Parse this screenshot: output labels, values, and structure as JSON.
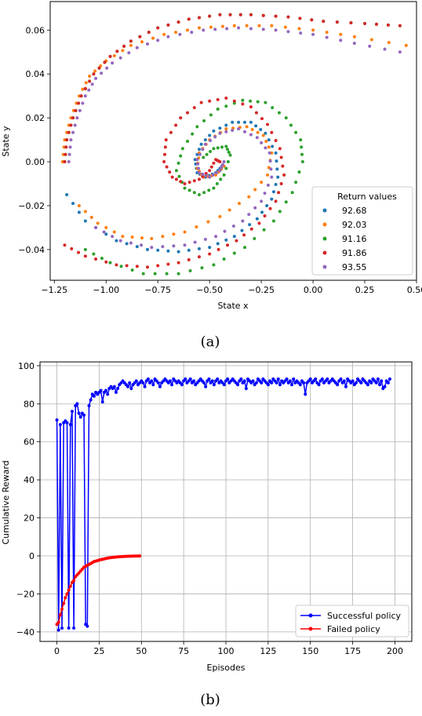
{
  "captions": [
    "(a)",
    "(b)"
  ],
  "chart_data": [
    {
      "type": "scatter",
      "xlabel": "State x",
      "ylabel": "State y",
      "xlim": [
        -1.27,
        0.5
      ],
      "ylim": [
        -0.054,
        0.073
      ],
      "xticks": [
        -1.25,
        -1.0,
        -0.75,
        -0.5,
        -0.25,
        0.0,
        0.25,
        0.5
      ],
      "xtick_labels": [
        "−1.25",
        "−1.00",
        "−0.75",
        "−0.50",
        "−0.25",
        "0.00",
        "0.25",
        "0.50"
      ],
      "yticks": [
        -0.04,
        -0.02,
        0.0,
        0.02,
        0.04,
        0.06
      ],
      "ytick_labels": [
        "−0.04",
        "−0.02",
        "0.00",
        "0.02",
        "0.04",
        "0.06"
      ],
      "grid": false,
      "legend": {
        "title": "Return values",
        "placement": "lower right"
      },
      "series": [
        {
          "name": "92.68",
          "color": "#1f77b4",
          "points": [
            [
              -1.19,
              -0.015
            ],
            [
              -1.1,
              -0.027
            ],
            [
              -0.95,
              -0.036
            ],
            [
              -0.8,
              -0.04
            ],
            [
              -0.65,
              -0.041
            ],
            [
              -0.5,
              -0.039
            ],
            [
              -0.38,
              -0.034
            ],
            [
              -0.27,
              -0.026
            ],
            [
              -0.2,
              -0.017
            ],
            [
              -0.17,
              -0.007
            ],
            [
              -0.18,
              0.004
            ],
            [
              -0.23,
              0.013
            ],
            [
              -0.3,
              0.018
            ],
            [
              -0.39,
              0.018
            ],
            [
              -0.48,
              0.014
            ],
            [
              -0.54,
              0.008
            ],
            [
              -0.57,
              0.001
            ],
            [
              -0.56,
              -0.005
            ],
            [
              -0.52,
              -0.007
            ],
            [
              -0.47,
              -0.005
            ],
            [
              -0.44,
              -0.002
            ]
          ]
        },
        {
          "name": "92.03",
          "color": "#ff7f0e",
          "points": [
            [
              -1.21,
              0.0
            ],
            [
              -1.2,
              0.01
            ],
            [
              -1.17,
              0.02
            ],
            [
              -1.13,
              0.03
            ],
            [
              -1.08,
              0.039
            ],
            [
              -1.0,
              0.046
            ],
            [
              -0.88,
              0.053
            ],
            [
              -0.72,
              0.058
            ],
            [
              -0.55,
              0.061
            ],
            [
              -0.38,
              0.062
            ],
            [
              -0.2,
              0.062
            ],
            [
              0.0,
              0.06
            ],
            [
              0.2,
              0.057
            ],
            [
              0.45,
              0.053
            ]
          ]
        },
        {
          "name": "92.03",
          "color": "#ff7f0e",
          "points": [
            [
              -1.13,
              -0.02
            ],
            [
              -1.04,
              -0.028
            ],
            [
              -0.92,
              -0.034
            ],
            [
              -0.78,
              -0.035
            ],
            [
              -0.62,
              -0.032
            ],
            [
              -0.45,
              -0.025
            ],
            [
              -0.31,
              -0.016
            ],
            [
              -0.22,
              -0.006
            ],
            [
              -0.2,
              0.004
            ],
            [
              -0.24,
              0.012
            ],
            [
              -0.32,
              0.016
            ],
            [
              -0.42,
              0.015
            ],
            [
              -0.5,
              0.01
            ],
            [
              -0.55,
              0.004
            ],
            [
              -0.56,
              -0.003
            ],
            [
              -0.53,
              -0.007
            ],
            [
              -0.47,
              -0.006
            ],
            [
              -0.43,
              -0.002
            ]
          ]
        },
        {
          "name": "91.16",
          "color": "#2ca02c",
          "points": [
            [
              -1.2,
              0.0
            ],
            [
              -1.19,
              0.01
            ],
            [
              -1.16,
              0.02
            ],
            [
              -1.12,
              0.03
            ],
            [
              -1.06,
              0.04
            ],
            [
              -0.98,
              0.048
            ],
            [
              -0.88,
              0.055
            ],
            [
              -0.75,
              0.061
            ],
            [
              -0.6,
              0.065
            ],
            [
              -0.45,
              0.067
            ],
            [
              -0.3,
              0.067
            ],
            [
              -0.12,
              0.066
            ],
            [
              0.05,
              0.064
            ],
            [
              0.25,
              0.063
            ],
            [
              0.42,
              0.062
            ]
          ]
        },
        {
          "name": "91.16",
          "color": "#2ca02c",
          "points": [
            [
              -1.1,
              -0.04
            ],
            [
              -0.98,
              -0.046
            ],
            [
              -0.82,
              -0.051
            ],
            [
              -0.65,
              -0.051
            ],
            [
              -0.48,
              -0.047
            ],
            [
              -0.33,
              -0.039
            ],
            [
              -0.19,
              -0.027
            ],
            [
              -0.1,
              -0.014
            ],
            [
              -0.05,
              0.0
            ],
            [
              -0.06,
              0.01
            ],
            [
              -0.13,
              0.02
            ],
            [
              -0.23,
              0.027
            ],
            [
              -0.34,
              0.028
            ],
            [
              -0.46,
              0.024
            ],
            [
              -0.56,
              0.016
            ],
            [
              -0.63,
              0.006
            ],
            [
              -0.66,
              -0.004
            ],
            [
              -0.62,
              -0.012
            ],
            [
              -0.55,
              -0.015
            ],
            [
              -0.48,
              -0.012
            ],
            [
              -0.43,
              -0.006
            ],
            [
              -0.4,
              0.003
            ],
            [
              -0.42,
              0.007
            ],
            [
              -0.48,
              0.006
            ],
            [
              -0.53,
              0.002
            ]
          ]
        },
        {
          "name": "91.86",
          "color": "#d62728",
          "points": [
            [
              -1.2,
              0.0
            ],
            [
              -1.19,
              0.01
            ],
            [
              -1.16,
              0.02
            ],
            [
              -1.12,
              0.03
            ],
            [
              -1.06,
              0.04
            ],
            [
              -0.98,
              0.048
            ],
            [
              -0.88,
              0.055
            ],
            [
              -0.75,
              0.061
            ],
            [
              -0.6,
              0.065
            ],
            [
              -0.45,
              0.067
            ],
            [
              -0.3,
              0.067
            ],
            [
              -0.12,
              0.066
            ],
            [
              0.05,
              0.064
            ],
            [
              0.25,
              0.063
            ],
            [
              0.42,
              0.062
            ]
          ]
        },
        {
          "name": "91.86",
          "color": "#d62728",
          "points": [
            [
              -1.2,
              -0.038
            ],
            [
              -1.1,
              -0.043
            ],
            [
              -0.95,
              -0.047
            ],
            [
              -0.8,
              -0.048
            ],
            [
              -0.65,
              -0.046
            ],
            [
              -0.5,
              -0.042
            ],
            [
              -0.37,
              -0.036
            ],
            [
              -0.26,
              -0.028
            ],
            [
              -0.18,
              -0.018
            ],
            [
              -0.14,
              -0.006
            ],
            [
              -0.16,
              0.006
            ],
            [
              -0.22,
              0.017
            ],
            [
              -0.3,
              0.025
            ],
            [
              -0.42,
              0.029
            ],
            [
              -0.54,
              0.027
            ],
            [
              -0.64,
              0.02
            ],
            [
              -0.71,
              0.01
            ],
            [
              -0.72,
              0.0
            ],
            [
              -0.68,
              -0.007
            ],
            [
              -0.62,
              -0.01
            ],
            [
              -0.55,
              -0.008
            ],
            [
              -0.5,
              -0.004
            ],
            [
              -0.47,
              0.001
            ],
            [
              -0.45,
              0.0
            ]
          ]
        },
        {
          "name": "93.55",
          "color": "#9467bd",
          "points": [
            [
              -1.05,
              -0.03
            ],
            [
              -0.93,
              -0.036
            ],
            [
              -0.78,
              -0.039
            ],
            [
              -0.62,
              -0.038
            ],
            [
              -0.47,
              -0.034
            ],
            [
              -0.34,
              -0.027
            ],
            [
              -0.25,
              -0.018
            ],
            [
              -0.2,
              -0.007
            ],
            [
              -0.21,
              0.004
            ],
            [
              -0.27,
              0.011
            ],
            [
              -0.36,
              0.015
            ],
            [
              -0.45,
              0.013
            ],
            [
              -0.52,
              0.008
            ],
            [
              -0.56,
              0.001
            ],
            [
              -0.55,
              -0.005
            ],
            [
              -0.5,
              -0.007
            ],
            [
              -0.45,
              -0.004
            ],
            [
              -0.43,
              0.0
            ]
          ]
        },
        {
          "name": "93.55",
          "color": "#9467bd",
          "points": [
            [
              -1.18,
              0.0
            ],
            [
              -1.17,
              0.01
            ],
            [
              -1.14,
              0.02
            ],
            [
              -1.1,
              0.03
            ],
            [
              -1.05,
              0.038
            ],
            [
              -0.97,
              0.045
            ],
            [
              -0.85,
              0.052
            ],
            [
              -0.7,
              0.057
            ],
            [
              -0.53,
              0.06
            ],
            [
              -0.36,
              0.061
            ],
            [
              -0.18,
              0.06
            ],
            [
              0.0,
              0.058
            ],
            [
              0.2,
              0.054
            ],
            [
              0.42,
              0.05
            ]
          ]
        }
      ]
    },
    {
      "type": "line",
      "xlabel": "Episodes",
      "ylabel": "Cumulative Reward",
      "xlim": [
        -10,
        210
      ],
      "ylim": [
        -45,
        102
      ],
      "xticks": [
        0,
        25,
        50,
        75,
        100,
        125,
        150,
        175,
        200
      ],
      "xtick_labels": [
        "0",
        "25",
        "50",
        "75",
        "100",
        "125",
        "150",
        "175",
        "200"
      ],
      "yticks": [
        -40,
        -20,
        0,
        20,
        40,
        60,
        80,
        100
      ],
      "ytick_labels": [
        "−40",
        "−20",
        "0",
        "20",
        "40",
        "60",
        "80",
        "100"
      ],
      "grid": true,
      "legend": {
        "placement": "lower right"
      },
      "series": [
        {
          "name": "Successful policy",
          "color": "#0000ff",
          "values": [
            71.5,
            -39,
            69,
            -38,
            70,
            71,
            70,
            -38,
            69,
            76,
            -38,
            79,
            80,
            75,
            73,
            75,
            74,
            -36,
            -37,
            79,
            82,
            85,
            84,
            86,
            85,
            86,
            87,
            81,
            86,
            87,
            85,
            88,
            89,
            88,
            89,
            86,
            88,
            90,
            91,
            92,
            91,
            90,
            89,
            91,
            88,
            90,
            91,
            92,
            90,
            91,
            92,
            91,
            89,
            92,
            93,
            91,
            92,
            90,
            93,
            92,
            91,
            89,
            91,
            92,
            93,
            92,
            91,
            92,
            90,
            93,
            92,
            91,
            92,
            91,
            90,
            92,
            93,
            91,
            92,
            93,
            91,
            92,
            90,
            91,
            92,
            93,
            92,
            91,
            89,
            92,
            93,
            91,
            92,
            90,
            92,
            93,
            91,
            92,
            91,
            90,
            92,
            93,
            91,
            92,
            93,
            92,
            91,
            90,
            92,
            93,
            91,
            92,
            88,
            93,
            92,
            91,
            92,
            90,
            91,
            93,
            92,
            91,
            93,
            92,
            91,
            90,
            92,
            91,
            93,
            92,
            91,
            93,
            90,
            92,
            91,
            92,
            93,
            91,
            92,
            90,
            93,
            91,
            92,
            91,
            90,
            92,
            91,
            85,
            91,
            92,
            93,
            91,
            92,
            93,
            91,
            90,
            92,
            93,
            91,
            92,
            93,
            91,
            92,
            93,
            92,
            91,
            90,
            92,
            93,
            91,
            92,
            89,
            93,
            92,
            91,
            92,
            90,
            91,
            93,
            92,
            91,
            93,
            92,
            91,
            90,
            92,
            91,
            93,
            92,
            91,
            93,
            90,
            92,
            88,
            89,
            92,
            91,
            93
          ]
        },
        {
          "name": "Failed policy",
          "color": "#ff0000",
          "values": [
            -36,
            -35,
            -31,
            -28,
            -25,
            -22,
            -20,
            -18,
            -16,
            -14,
            -13,
            -11,
            -10,
            -9,
            -8,
            -7,
            -6,
            -5.5,
            -5,
            -4.5,
            -4,
            -3.5,
            -3,
            -2.8,
            -2.5,
            -2.2,
            -2,
            -1.8,
            -1.6,
            -1.4,
            -1.2,
            -1,
            -0.9,
            -0.8,
            -0.7,
            -0.6,
            -0.5,
            -0.45,
            -0.4,
            -0.35,
            -0.3,
            -0.25,
            -0.2,
            -0.18,
            -0.16,
            -0.14,
            -0.12,
            -0.1,
            -0.08,
            -0.06
          ]
        }
      ]
    }
  ]
}
